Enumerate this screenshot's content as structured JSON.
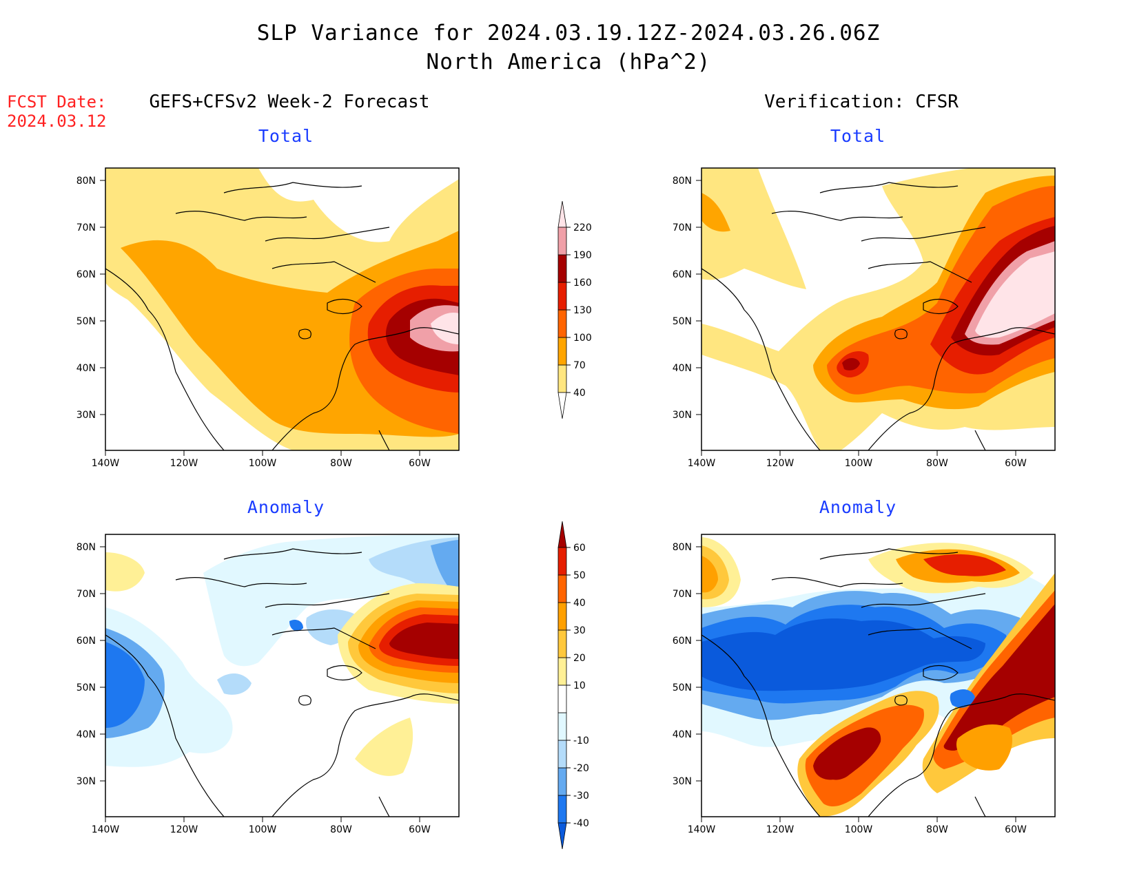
{
  "header": {
    "title_line1": "SLP Variance for 2024.03.19.12Z-2024.03.26.06Z",
    "title_line2": "North America (hPa^2)",
    "fcst_label": "FCST Date:",
    "fcst_date": "2024.03.12",
    "left_column": "GEFS+CFSv2 Week-2 Forecast",
    "right_column": "Verification: CFSR"
  },
  "panels": {
    "top_left_title": "Total",
    "top_right_title": "Total",
    "bottom_left_title": "Anomaly",
    "bottom_right_title": "Anomaly"
  },
  "axes": {
    "lat_ticks": [
      "80N",
      "70N",
      "60N",
      "50N",
      "40N",
      "30N"
    ],
    "lon_ticks": [
      "140W",
      "120W",
      "100W",
      "80W",
      "60W"
    ]
  },
  "colorbar_total": {
    "levels": [
      "40",
      "70",
      "100",
      "130",
      "160",
      "190",
      "220"
    ],
    "colors": [
      "#ffe680",
      "#ffa500",
      "#ff6400",
      "#e61e00",
      "#a50000",
      "#f0a0a8",
      "#ffe4e8"
    ]
  },
  "colorbar_anomaly": {
    "levels": [
      "-40",
      "-30",
      "-20",
      "-10",
      "10",
      "20",
      "30",
      "40",
      "50",
      "60"
    ],
    "colors": [
      "#0a5adc",
      "#1e78f0",
      "#64aaf0",
      "#b4dcfa",
      "#e1f8ff",
      "#ffffff",
      "#fff096",
      "#ffc83c",
      "#ffa000",
      "#ff6400",
      "#e61e00",
      "#a50000"
    ]
  },
  "colors": {
    "title_red": "#ff2020",
    "panel_title_blue": "#1a3cff"
  }
}
